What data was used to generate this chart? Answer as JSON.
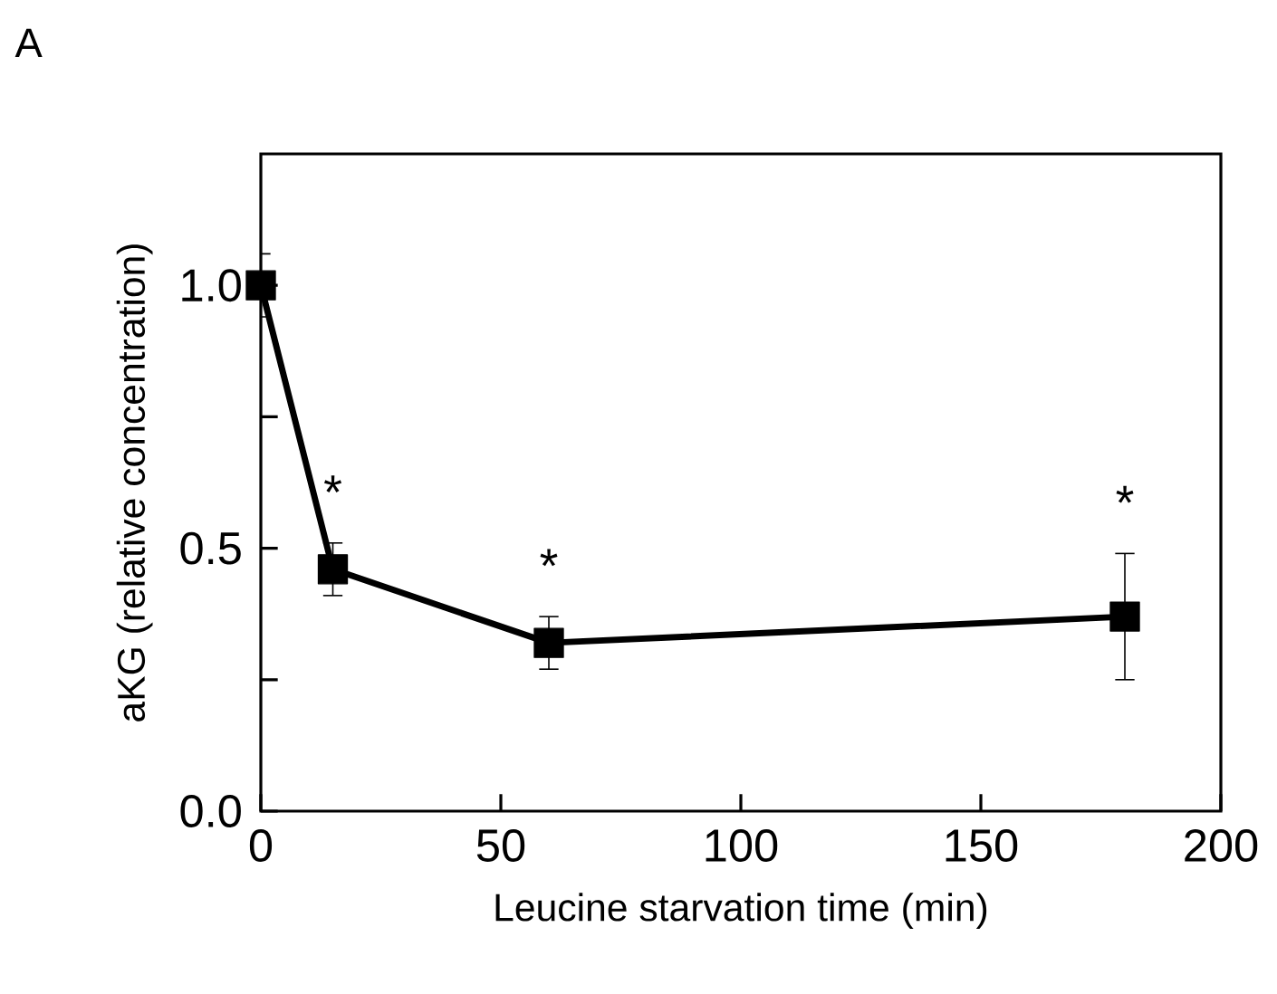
{
  "chart_data": {
    "type": "line",
    "xlabel": "Leucine starvation time (min)",
    "ylabel": "aKG (relative concentration)",
    "x": [
      0,
      15,
      60,
      180
    ],
    "series": [
      {
        "color": "#000000",
        "values": [
          1.0,
          0.46,
          0.32,
          0.37
        ],
        "errors": [
          0.06,
          0.05,
          0.05,
          0.12
        ]
      }
    ],
    "xlim": [
      0,
      200
    ],
    "xticks": [
      0,
      50,
      100,
      150,
      200
    ],
    "ylim": [
      0,
      1.25
    ],
    "yticks": [
      {
        "value": 0,
        "label": "0.0"
      },
      {
        "value": 0.25,
        "label": null
      },
      {
        "value": 0.5,
        "label": "0.5"
      },
      {
        "value": 0.75,
        "label": null
      },
      {
        "value": 1.0,
        "label": "1.0"
      }
    ],
    "marker": "square",
    "line_style": "solid",
    "grid": false,
    "annotations": [
      "A",
      "*",
      "*",
      "*"
    ]
  }
}
